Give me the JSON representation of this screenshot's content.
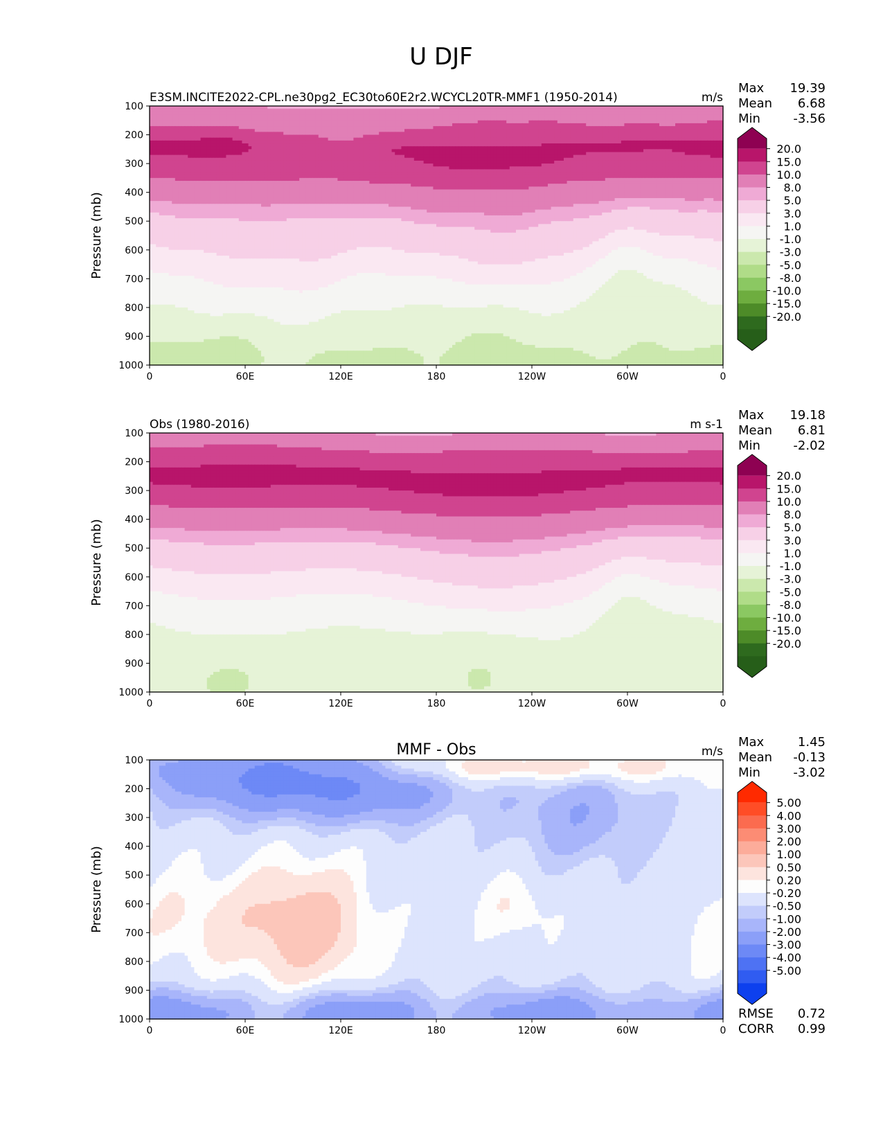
{
  "figure": {
    "title": "U DJF"
  },
  "chart_data": [
    {
      "type": "heatmap",
      "title_left": "E3SM.INCITE2022-CPL.ne30pg2_EC30to60E2r2.WCYCL20TR-MMF1 (1950-2014)",
      "title_center": "",
      "title_right": "m/s",
      "ylabel": "Pressure (mb)",
      "xlabel": "",
      "x_ticks": [
        "0",
        "60E",
        "120E",
        "180",
        "120W",
        "60W",
        "0"
      ],
      "y_ticks": [
        "100",
        "200",
        "300",
        "400",
        "500",
        "600",
        "700",
        "800",
        "900",
        "1000"
      ],
      "xlim": [
        0,
        360
      ],
      "ylim": [
        1000,
        100
      ],
      "stats": [
        {
          "label": "Max",
          "value": "19.39"
        },
        {
          "label": "Mean",
          "value": "6.68"
        },
        {
          "label": "Min",
          "value": "-3.56"
        }
      ],
      "colorbar": {
        "labels": [
          "20.0",
          "15.0",
          "10.0",
          "8.0",
          "5.0",
          "3.0",
          "1.0",
          "-1.0",
          "-3.0",
          "-5.0",
          "-8.0",
          "-10.0",
          "-15.0",
          "-20.0"
        ],
        "colors": [
          "#8e0152",
          "#b8156a",
          "#d0448f",
          "#e17fb6",
          "#efaad5",
          "#f7d0e7",
          "#fae8f2",
          "#f5f5f3",
          "#e6f3d7",
          "#cbe8ad",
          "#b0dc88",
          "#8bc862",
          "#6ead3f",
          "#4d8b28",
          "#2e6a1e",
          "#265e19"
        ]
      },
      "field": "model_u"
    },
    {
      "type": "heatmap",
      "title_left": "Obs (1980-2016)",
      "title_center": "",
      "title_right": "m s-1",
      "ylabel": "Pressure (mb)",
      "xlabel": "",
      "x_ticks": [
        "0",
        "60E",
        "120E",
        "180",
        "120W",
        "60W",
        "0"
      ],
      "y_ticks": [
        "100",
        "200",
        "300",
        "400",
        "500",
        "600",
        "700",
        "800",
        "900",
        "1000"
      ],
      "xlim": [
        0,
        360
      ],
      "ylim": [
        1000,
        100
      ],
      "stats": [
        {
          "label": "Max",
          "value": "19.18"
        },
        {
          "label": "Mean",
          "value": "6.81"
        },
        {
          "label": "Min",
          "value": "-2.02"
        }
      ],
      "colorbar": {
        "labels": [
          "20.0",
          "15.0",
          "10.0",
          "8.0",
          "5.0",
          "3.0",
          "1.0",
          "-1.0",
          "-3.0",
          "-5.0",
          "-8.0",
          "-10.0",
          "-15.0",
          "-20.0"
        ],
        "colors": [
          "#8e0152",
          "#b8156a",
          "#d0448f",
          "#e17fb6",
          "#efaad5",
          "#f7d0e7",
          "#fae8f2",
          "#f5f5f3",
          "#e6f3d7",
          "#cbe8ad",
          "#b0dc88",
          "#8bc862",
          "#6ead3f",
          "#4d8b28",
          "#2e6a1e",
          "#265e19"
        ]
      },
      "field": "obs_u"
    },
    {
      "type": "heatmap",
      "title_left": "",
      "title_center": "MMF - Obs",
      "title_right": "m/s",
      "ylabel": "Pressure (mb)",
      "xlabel": "",
      "x_ticks": [
        "0",
        "60E",
        "120E",
        "180",
        "120W",
        "60W",
        "0"
      ],
      "y_ticks": [
        "100",
        "200",
        "300",
        "400",
        "500",
        "600",
        "700",
        "800",
        "900",
        "1000"
      ],
      "xlim": [
        0,
        360
      ],
      "ylim": [
        1000,
        100
      ],
      "stats": [
        {
          "label": "Max",
          "value": "1.45"
        },
        {
          "label": "Mean",
          "value": "-0.13"
        },
        {
          "label": "Min",
          "value": "-3.02"
        }
      ],
      "extra_stats": [
        {
          "label": "RMSE",
          "value": "0.72"
        },
        {
          "label": "CORR",
          "value": "0.99"
        }
      ],
      "colorbar": {
        "labels": [
          "5.00",
          "4.00",
          "3.00",
          "2.00",
          "1.00",
          "0.50",
          "0.20",
          "-0.20",
          "-0.50",
          "-1.00",
          "-2.00",
          "-3.00",
          "-4.00",
          "-5.00"
        ],
        "colors": [
          "#ff2a00",
          "#ff4d26",
          "#fb6b4f",
          "#fc8c74",
          "#fcac9a",
          "#fcc6ba",
          "#fde4de",
          "#fdfdfd",
          "#dde4fd",
          "#c2ccfb",
          "#a8b5fa",
          "#8b9ff8",
          "#6d89f6",
          "#4e72f3",
          "#305cf1",
          "#0d40ee"
        ]
      },
      "field": "diff_u"
    }
  ]
}
